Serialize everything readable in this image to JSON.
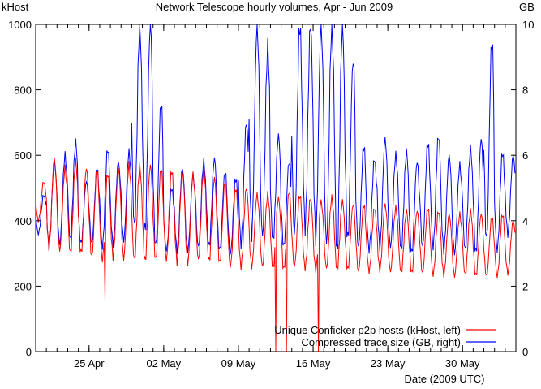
{
  "chart_data": {
    "type": "line",
    "title": "Network Telescope hourly volumes,  Apr - Jun 2009",
    "xlabel": "Date (2009 UTC)",
    "ylabel_left": "kHost",
    "ylabel_right": "GB",
    "x_range": [
      "2009-04-20",
      "2009-06-04"
    ],
    "x_ticks": [
      {
        "date": "2009-04-25",
        "label": "25 Apr"
      },
      {
        "date": "2009-05-02",
        "label": "02 May"
      },
      {
        "date": "2009-05-09",
        "label": "09 May"
      },
      {
        "date": "2009-05-16",
        "label": "16 May"
      },
      {
        "date": "2009-05-23",
        "label": "23 May"
      },
      {
        "date": "2009-05-30",
        "label": "30 May"
      }
    ],
    "ylim_left": [
      0,
      1000
    ],
    "y_ticks_left": [
      "0",
      "200",
      "400",
      "600",
      "800",
      "1000"
    ],
    "ylim_right": [
      0,
      10
    ],
    "y_ticks_right": [
      "0",
      "2",
      "4",
      "6",
      "8",
      "10"
    ],
    "grid": false,
    "legend_position": "bottom-right",
    "series": [
      {
        "name": "Unique Conficker p2p hosts (kHost, left)",
        "color": "#ff0000",
        "axis": "left",
        "daily_peaks": [
          520,
          590,
          560,
          580,
          560,
          555,
          545,
          560,
          570,
          565,
          570,
          560,
          555,
          550,
          540,
          560,
          530,
          520,
          500,
          500,
          480,
          480,
          470,
          490,
          480,
          470,
          460,
          470,
          460,
          450,
          450,
          440,
          450,
          440,
          430,
          430,
          440,
          430,
          420,
          420,
          430,
          420,
          410,
          420,
          400
        ],
        "daily_troughs": [
          400,
          320,
          310,
          300,
          300,
          290,
          280,
          290,
          285,
          280,
          275,
          280,
          280,
          275,
          270,
          280,
          275,
          270,
          260,
          260,
          260,
          260,
          255,
          250,
          260,
          255,
          250,
          255,
          250,
          250,
          245,
          245,
          250,
          245,
          240,
          240,
          240,
          235,
          235,
          230,
          235,
          230,
          230,
          230,
          240
        ],
        "dips": [
          {
            "date": "2009-04-26",
            "value": 155
          },
          {
            "date": "2009-05-12",
            "value": 0
          },
          {
            "date": "2009-05-13",
            "value": 0
          },
          {
            "date": "2009-05-16",
            "value": 0
          }
        ]
      },
      {
        "name": "Compressed trace size (GB, right)",
        "color": "#0000ff",
        "axis": "right",
        "daily_peaks": [
          4.8,
          5.8,
          6.0,
          6.4,
          5.2,
          5.6,
          6.2,
          5.8,
          6.1,
          10.0,
          10.0,
          7.6,
          5.0,
          5.6,
          5.4,
          5.8,
          5.9,
          5.5,
          5.3,
          7.0,
          10.0,
          9.3,
          6.6,
          5.8,
          10.0,
          10.0,
          10.0,
          10.0,
          10.0,
          8.9,
          6.3,
          5.9,
          6.5,
          6.0,
          6.1,
          5.8,
          6.4,
          6.6,
          6.0,
          5.7,
          6.2,
          6.5,
          9.5,
          6.1,
          6.0
        ],
        "daily_troughs": [
          3.6,
          3.2,
          3.3,
          3.4,
          3.3,
          3.3,
          3.2,
          3.3,
          3.4,
          3.8,
          3.6,
          3.2,
          3.1,
          3.1,
          3.1,
          3.2,
          3.2,
          3.1,
          3.0,
          3.3,
          3.6,
          3.5,
          3.4,
          3.2,
          3.6,
          3.8,
          3.5,
          3.3,
          3.0,
          3.4,
          3.2,
          3.1,
          3.2,
          3.2,
          3.1,
          3.0,
          3.2,
          3.2,
          3.1,
          3.0,
          3.1,
          3.0,
          3.4,
          3.1,
          3.6
        ]
      }
    ]
  }
}
